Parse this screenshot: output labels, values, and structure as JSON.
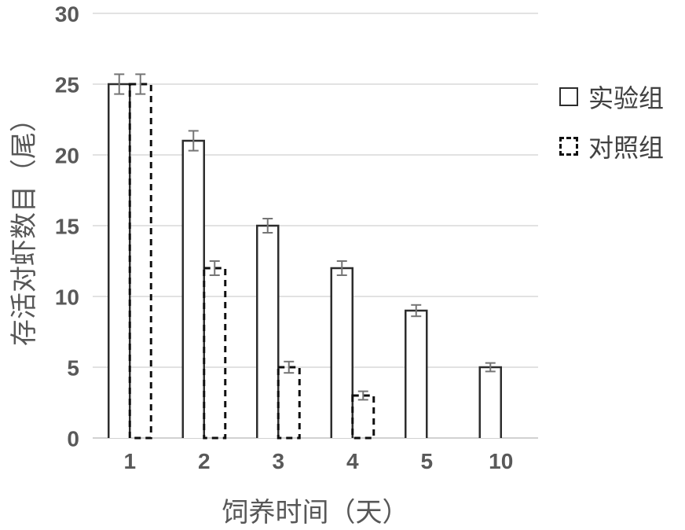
{
  "chart_data": {
    "type": "bar",
    "title": "",
    "xlabel": "饲养时间（天）",
    "ylabel": "存活对虾数目（尾）",
    "categories": [
      "1",
      "2",
      "3",
      "4",
      "5",
      "10"
    ],
    "series": [
      {
        "id": "experimental",
        "name": "实验组",
        "style": "solid",
        "values": [
          25,
          21,
          15,
          12,
          9,
          5
        ],
        "errors": [
          0.7,
          0.7,
          0.5,
          0.5,
          0.4,
          0.3
        ]
      },
      {
        "id": "control",
        "name": "对照组",
        "style": "dashed",
        "values": [
          25,
          12,
          5,
          3,
          0,
          0
        ],
        "errors": [
          0.7,
          0.5,
          0.4,
          0.3,
          0,
          0
        ]
      }
    ],
    "ylim": [
      0,
      30
    ],
    "yticks": [
      0,
      5,
      10,
      15,
      20,
      25,
      30
    ],
    "grid": "horizontal",
    "legend_position": "right",
    "colors": {
      "background": "#ffffff",
      "bar_fill": "#ffffff",
      "solid_bar_stroke": "#2d2d2d",
      "dashed_bar_stroke": "#0f0f0f",
      "gridline": "#d8d8d8",
      "baseline": "#c2c2c2",
      "tick_text": "#595959",
      "error_bar": "#757575"
    }
  }
}
